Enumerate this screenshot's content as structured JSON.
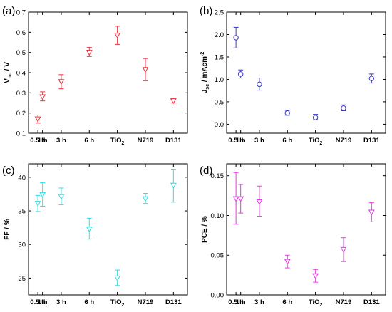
{
  "chart_data": [
    {
      "type": "scatter",
      "panel_label": "(a)",
      "ylabel": "V",
      "ylabel_sub": "oc",
      "ylabel_unit": " / V",
      "color": "#e8343c",
      "ylim": [
        0.1,
        0.7
      ],
      "yticks": [
        "0.1",
        "0.2",
        "0.3",
        "0.4",
        "0.5",
        "0.6",
        "0.7"
      ],
      "categories": [
        "0.5 h",
        "1 h",
        "3 h",
        "6 h",
        "TiO2",
        "N719",
        "D131"
      ],
      "x": [
        0.5,
        1,
        3,
        6,
        9,
        12,
        15
      ],
      "values": [
        0.17,
        0.28,
        0.355,
        0.5,
        0.585,
        0.415,
        0.26
      ],
      "err_low": [
        0.15,
        0.26,
        0.32,
        0.48,
        0.54,
        0.36,
        0.25
      ],
      "err_high": [
        0.19,
        0.305,
        0.39,
        0.525,
        0.63,
        0.47,
        0.27
      ]
    },
    {
      "type": "scatter",
      "panel_label": "(b)",
      "ylabel": "J",
      "ylabel_sub": "sc",
      "ylabel_unit": " / mAcm",
      "ylabel_sup": "-2",
      "color": "#3a3ac8",
      "ylim": [
        -0.2,
        2.5
      ],
      "yticks": [
        "0.0",
        "0.5",
        "1.0",
        "1.5",
        "2.0",
        "2.5"
      ],
      "categories": [
        "0.5 h",
        "1 h",
        "3 h",
        "6 h",
        "TiO2",
        "N719",
        "D131"
      ],
      "x": [
        0.5,
        1,
        3,
        6,
        9,
        12,
        15
      ],
      "values": [
        1.93,
        1.12,
        0.89,
        0.25,
        0.15,
        0.36,
        1.02
      ],
      "err_low": [
        1.7,
        1.03,
        0.76,
        0.2,
        0.1,
        0.3,
        0.92
      ],
      "err_high": [
        2.16,
        1.21,
        1.03,
        0.31,
        0.22,
        0.43,
        1.12
      ]
    },
    {
      "type": "scatter",
      "panel_label": "(c)",
      "ylabel": "FF / %",
      "color": "#33dfe0",
      "ylim": [
        22.5,
        42
      ],
      "yticks": [
        "25",
        "30",
        "35",
        "40"
      ],
      "categories": [
        "0.5 h",
        "1 h",
        "3 h",
        "6 h",
        "TiO2",
        "N719",
        "D131"
      ],
      "x": [
        0.5,
        1,
        3,
        6,
        9,
        12,
        15
      ],
      "values": [
        36.1,
        37.4,
        37.1,
        32.3,
        25.0,
        36.8,
        38.8
      ],
      "err_low": [
        34.9,
        35.7,
        35.9,
        30.8,
        23.9,
        36.1,
        36.3
      ],
      "err_high": [
        37.3,
        39.2,
        38.4,
        33.9,
        26.2,
        37.6,
        41.2
      ]
    },
    {
      "type": "scatter",
      "panel_label": "(d)",
      "ylabel": "PCE / %",
      "color": "#e33be3",
      "ylim": [
        0,
        0.165
      ],
      "yticks": [
        "0.00",
        "0.05",
        "0.10",
        "0.15"
      ],
      "categories": [
        "0.5 h",
        "1 h",
        "3 h",
        "6 h",
        "TiO2",
        "N719",
        "D131"
      ],
      "x": [
        0.5,
        1,
        3,
        6,
        9,
        12,
        15
      ],
      "values": [
        0.121,
        0.121,
        0.117,
        0.042,
        0.024,
        0.057,
        0.104
      ],
      "err_low": [
        0.089,
        0.103,
        0.099,
        0.034,
        0.016,
        0.042,
        0.092
      ],
      "err_high": [
        0.154,
        0.139,
        0.137,
        0.05,
        0.032,
        0.072,
        0.116
      ]
    }
  ]
}
